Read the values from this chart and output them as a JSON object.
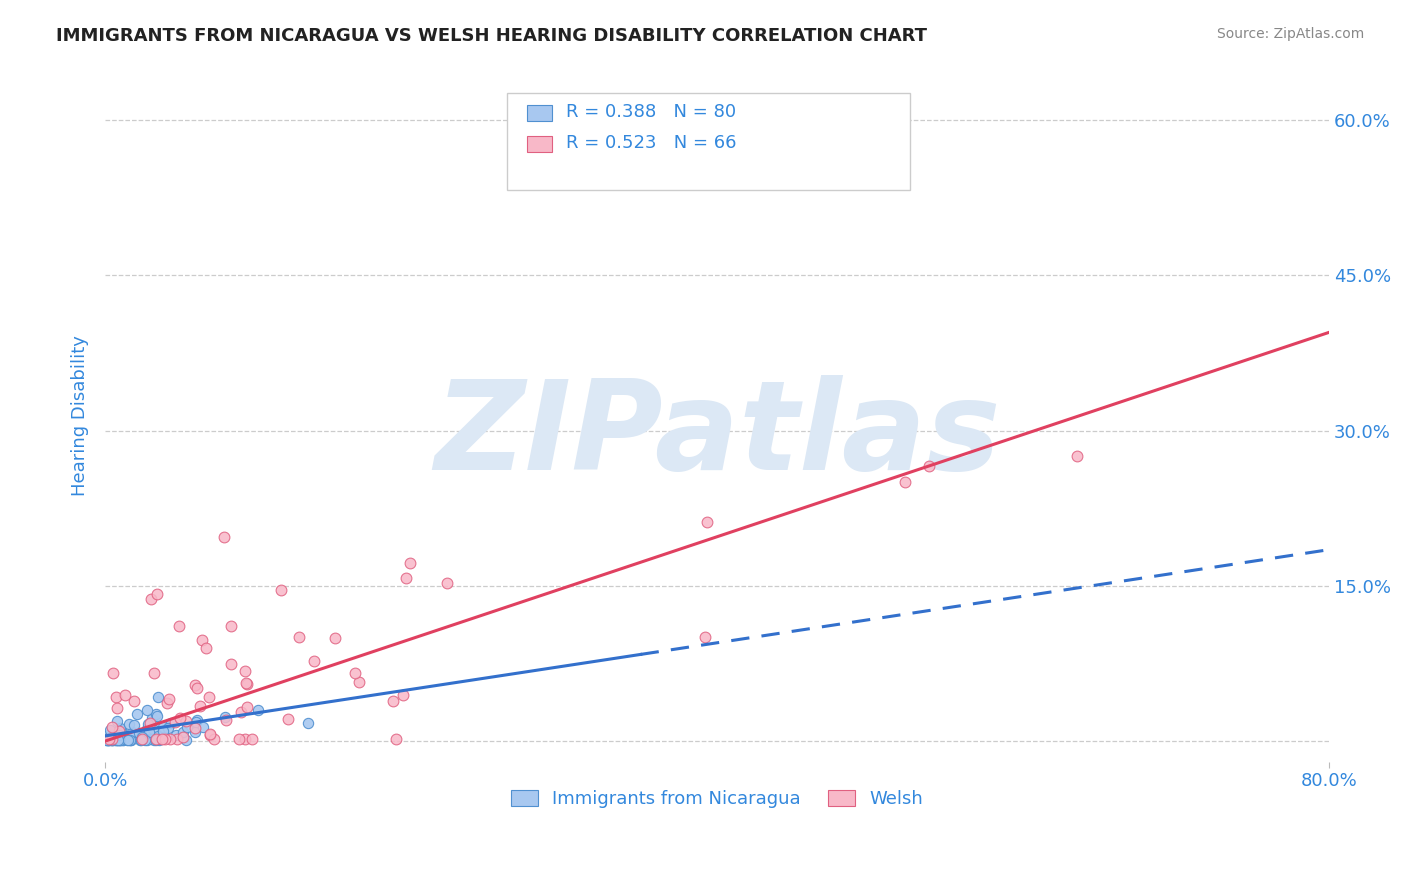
{
  "title": "IMMIGRANTS FROM NICARAGUA VS WELSH HEARING DISABILITY CORRELATION CHART",
  "source_text": "Source: ZipAtlas.com",
  "xlabel": "",
  "ylabel": "Hearing Disability",
  "xlim": [
    0.0,
    0.8
  ],
  "ylim": [
    -0.02,
    0.65
  ],
  "ytick_positions": [
    0.0,
    0.15,
    0.3,
    0.45,
    0.6
  ],
  "ytick_labels": [
    "",
    "15.0%",
    "30.0%",
    "45.0%",
    "60.0%"
  ],
  "blue_R": 0.388,
  "blue_N": 80,
  "pink_R": 0.523,
  "pink_N": 66,
  "blue_color": "#a8c8f0",
  "pink_color": "#f8b8c8",
  "blue_edge_color": "#5090d0",
  "pink_edge_color": "#e06080",
  "blue_line_color": "#3370cc",
  "pink_line_color": "#e04060",
  "axis_label_color": "#3388dd",
  "title_color": "#222222",
  "grid_color": "#cccccc",
  "background_color": "#ffffff",
  "watermark_text": "ZIPatlas",
  "watermark_color": "#dce8f5",
  "legend_label_blue": "Immigrants from Nicaragua",
  "legend_label_pink": "Welsh",
  "blue_line_solid_end": 0.35,
  "blue_line_x0": 0.0,
  "blue_line_y0": 0.005,
  "blue_line_x1": 0.8,
  "blue_line_y1": 0.185,
  "pink_line_x0": 0.0,
  "pink_line_y0": 0.0,
  "pink_line_x1": 0.8,
  "pink_line_y1": 0.395
}
